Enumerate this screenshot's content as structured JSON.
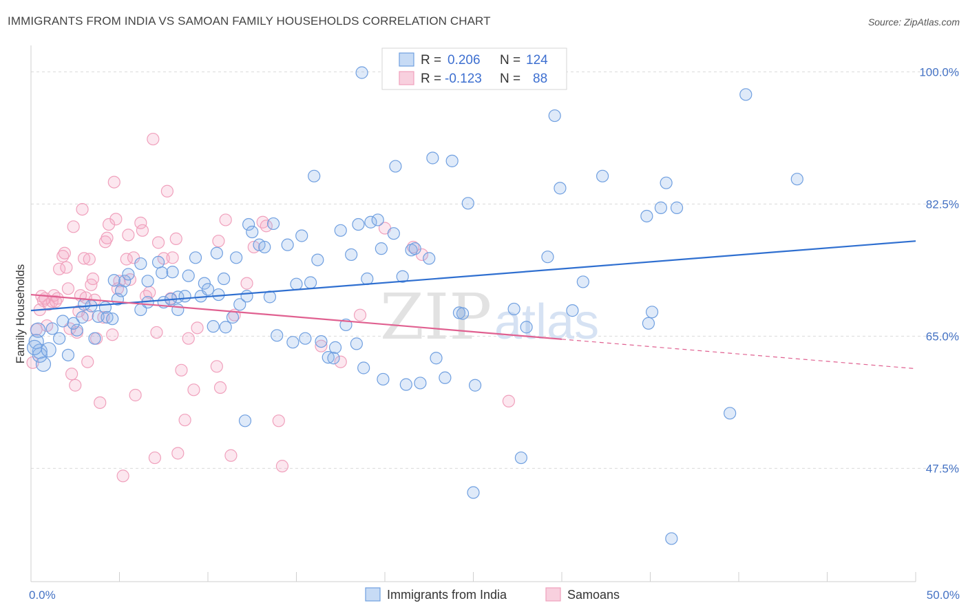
{
  "title": "IMMIGRANTS FROM INDIA VS SAMOAN FAMILY HOUSEHOLDS CORRELATION CHART",
  "source": "Source: ZipAtlas.com",
  "watermark": {
    "zip": "ZIP",
    "atlas": "atlas"
  },
  "legend": {
    "rows": [
      {
        "r_label": "R =",
        "r_value": "0.206",
        "n_label": "N =",
        "n_value": "124"
      },
      {
        "r_label": "R =",
        "r_value": "-0.123",
        "n_label": "N =",
        "n_value": "88"
      }
    ]
  },
  "bottom_legend": {
    "india": "Immigrants from India",
    "samoans": "Samoans"
  },
  "chart_data": {
    "type": "scatter",
    "xlabel": "",
    "ylabel": "Family Households",
    "xlim": [
      0,
      50
    ],
    "ylim": [
      32.5,
      103.5
    ],
    "x_tick_labels": [
      {
        "value": 0,
        "label": "0.0%"
      },
      {
        "value": 50,
        "label": "50.0%"
      }
    ],
    "y_tick_labels": [
      {
        "value": 100,
        "label": "100.0%"
      },
      {
        "value": 82.5,
        "label": "82.5%"
      },
      {
        "value": 65,
        "label": "65.0%"
      },
      {
        "value": 47.5,
        "label": "47.5%"
      }
    ],
    "grid": "horizontal dashed",
    "legend_position": "top-center",
    "colors": {
      "india": "#6f9fe0",
      "india_line": "#2f6fd0",
      "samoans": "#f0a0bc",
      "samoans_line": "#e06090"
    },
    "series": [
      {
        "name": "Immigrants from India",
        "r": 0.206,
        "n": 124,
        "trend": {
          "x": [
            0,
            50
          ],
          "y": [
            68.4,
            77.6
          ]
        },
        "points": [
          [
            0.3,
            64.3
          ],
          [
            0.5,
            63.0
          ],
          [
            0.7,
            61.3
          ],
          [
            0.5,
            62.5
          ],
          [
            1.2,
            66.0
          ],
          [
            1.6,
            64.7
          ],
          [
            2.1,
            62.5
          ],
          [
            1.8,
            67.0
          ],
          [
            2.6,
            65.8
          ],
          [
            2.9,
            67.5
          ],
          [
            3.4,
            69.0
          ],
          [
            3.8,
            67.6
          ],
          [
            3.6,
            64.7
          ],
          [
            4.2,
            68.8
          ],
          [
            4.3,
            67.5
          ],
          [
            4.6,
            67.3
          ],
          [
            4.7,
            72.4
          ],
          [
            4.9,
            69.9
          ],
          [
            5.3,
            72.3
          ],
          [
            5.1,
            71.0
          ],
          [
            5.5,
            73.2
          ],
          [
            6.2,
            74.6
          ],
          [
            6.2,
            68.5
          ],
          [
            6.6,
            72.3
          ],
          [
            7.2,
            74.8
          ],
          [
            7.4,
            73.4
          ],
          [
            7.5,
            69.5
          ],
          [
            8.0,
            73.5
          ],
          [
            8.3,
            70.2
          ],
          [
            8.3,
            68.5
          ],
          [
            8.7,
            70.3
          ],
          [
            8.9,
            73.0
          ],
          [
            9.3,
            75.4
          ],
          [
            9.6,
            70.3
          ],
          [
            9.8,
            72.0
          ],
          [
            10.0,
            71.2
          ],
          [
            10.3,
            66.3
          ],
          [
            10.5,
            76.0
          ],
          [
            10.6,
            70.5
          ],
          [
            10.9,
            72.6
          ],
          [
            11.0,
            66.2
          ],
          [
            11.4,
            67.5
          ],
          [
            11.6,
            75.4
          ],
          [
            11.8,
            69.2
          ],
          [
            12.1,
            53.8
          ],
          [
            12.3,
            79.8
          ],
          [
            12.5,
            78.8
          ],
          [
            12.9,
            77.1
          ],
          [
            13.2,
            76.8
          ],
          [
            13.5,
            70.2
          ],
          [
            13.7,
            79.9
          ],
          [
            13.9,
            65.1
          ],
          [
            14.5,
            77.1
          ],
          [
            14.8,
            64.2
          ],
          [
            15.0,
            71.9
          ],
          [
            15.3,
            78.3
          ],
          [
            15.5,
            64.7
          ],
          [
            15.8,
            72.1
          ],
          [
            16.0,
            86.2
          ],
          [
            16.2,
            75.1
          ],
          [
            16.4,
            64.3
          ],
          [
            16.8,
            62.2
          ],
          [
            17.1,
            62.1
          ],
          [
            17.2,
            63.5
          ],
          [
            17.5,
            79.0
          ],
          [
            17.8,
            66.5
          ],
          [
            18.1,
            75.8
          ],
          [
            18.4,
            64.0
          ],
          [
            18.5,
            79.8
          ],
          [
            18.8,
            60.8
          ],
          [
            19.0,
            72.6
          ],
          [
            19.2,
            80.1
          ],
          [
            19.6,
            80.4
          ],
          [
            19.8,
            76.6
          ],
          [
            19.9,
            59.3
          ],
          [
            20.5,
            78.6
          ],
          [
            20.6,
            87.5
          ],
          [
            21.0,
            72.9
          ],
          [
            21.2,
            58.6
          ],
          [
            21.5,
            76.4
          ],
          [
            21.7,
            76.6
          ],
          [
            22.0,
            58.8
          ],
          [
            22.5,
            75.3
          ],
          [
            22.7,
            88.6
          ],
          [
            22.9,
            62.1
          ],
          [
            23.4,
            59.5
          ],
          [
            23.8,
            88.2
          ],
          [
            24.2,
            68.1
          ],
          [
            24.4,
            68.0
          ],
          [
            24.7,
            82.6
          ],
          [
            25.0,
            44.3
          ],
          [
            25.1,
            58.5
          ],
          [
            27.3,
            68.6
          ],
          [
            27.7,
            48.9
          ],
          [
            28.0,
            66.2
          ],
          [
            29.2,
            75.5
          ],
          [
            29.6,
            94.2
          ],
          [
            29.9,
            84.6
          ],
          [
            30.6,
            68.4
          ],
          [
            31.2,
            72.2
          ],
          [
            32.3,
            86.2
          ],
          [
            34.8,
            80.9
          ],
          [
            35.6,
            82.0
          ],
          [
            35.9,
            85.3
          ],
          [
            36.5,
            82.0
          ],
          [
            34.9,
            66.7
          ],
          [
            35.1,
            68.2
          ],
          [
            36.2,
            38.2
          ],
          [
            39.5,
            54.8
          ],
          [
            40.4,
            97.0
          ],
          [
            43.3,
            85.8
          ],
          [
            18.7,
            99.9
          ],
          [
            0.2,
            63.5
          ],
          [
            0.4,
            65.8
          ],
          [
            1.0,
            63.2
          ],
          [
            2.4,
            66.7
          ],
          [
            3.0,
            69.2
          ],
          [
            6.6,
            69.5
          ],
          [
            7.9,
            69.9
          ],
          [
            12.2,
            70.3
          ]
        ]
      },
      {
        "name": "Samoans",
        "r": -0.123,
        "n": 88,
        "trend": {
          "x": [
            0,
            30
          ],
          "y": [
            70.5,
            64.6
          ]
        },
        "trend_dashed": {
          "x": [
            30,
            50
          ],
          "y": [
            64.6,
            60.7
          ]
        },
        "points": [
          [
            0.1,
            61.5
          ],
          [
            0.3,
            65.9
          ],
          [
            0.5,
            68.5
          ],
          [
            0.6,
            70.3
          ],
          [
            0.7,
            69.7
          ],
          [
            0.9,
            66.4
          ],
          [
            1.0,
            69.2
          ],
          [
            1.2,
            69.6
          ],
          [
            1.3,
            70.4
          ],
          [
            1.5,
            70.0
          ],
          [
            1.6,
            73.9
          ],
          [
            1.8,
            75.6
          ],
          [
            1.9,
            76.0
          ],
          [
            2.0,
            74.1
          ],
          [
            2.1,
            71.3
          ],
          [
            2.3,
            60.0
          ],
          [
            2.4,
            79.5
          ],
          [
            2.5,
            58.5
          ],
          [
            2.6,
            65.5
          ],
          [
            2.7,
            68.3
          ],
          [
            2.8,
            70.4
          ],
          [
            2.9,
            81.8
          ],
          [
            3.0,
            75.3
          ],
          [
            3.1,
            70.1
          ],
          [
            3.2,
            61.6
          ],
          [
            3.3,
            75.2
          ],
          [
            3.4,
            71.8
          ],
          [
            3.5,
            72.6
          ],
          [
            3.6,
            69.8
          ],
          [
            3.7,
            64.7
          ],
          [
            3.9,
            56.2
          ],
          [
            4.1,
            67.5
          ],
          [
            4.2,
            77.5
          ],
          [
            4.3,
            78.0
          ],
          [
            4.4,
            79.8
          ],
          [
            4.6,
            65.2
          ],
          [
            4.7,
            85.4
          ],
          [
            4.8,
            80.5
          ],
          [
            5.0,
            72.3
          ],
          [
            5.2,
            46.5
          ],
          [
            5.4,
            75.2
          ],
          [
            5.5,
            78.4
          ],
          [
            5.8,
            75.4
          ],
          [
            5.9,
            57.2
          ],
          [
            6.2,
            80.0
          ],
          [
            6.3,
            79.0
          ],
          [
            6.5,
            70.3
          ],
          [
            6.7,
            70.8
          ],
          [
            6.9,
            91.1
          ],
          [
            7.0,
            48.9
          ],
          [
            7.1,
            65.5
          ],
          [
            7.2,
            77.4
          ],
          [
            7.5,
            75.3
          ],
          [
            7.7,
            84.2
          ],
          [
            7.9,
            70.0
          ],
          [
            8.0,
            75.4
          ],
          [
            8.2,
            77.9
          ],
          [
            8.3,
            49.5
          ],
          [
            8.5,
            60.5
          ],
          [
            8.7,
            53.9
          ],
          [
            8.9,
            64.7
          ],
          [
            9.2,
            57.9
          ],
          [
            9.4,
            66.1
          ],
          [
            10.5,
            61.0
          ],
          [
            10.6,
            77.6
          ],
          [
            10.7,
            58.2
          ],
          [
            11.0,
            80.4
          ],
          [
            11.3,
            49.2
          ],
          [
            11.5,
            67.8
          ],
          [
            12.2,
            72.0
          ],
          [
            12.6,
            76.8
          ],
          [
            13.1,
            80.1
          ],
          [
            13.3,
            79.6
          ],
          [
            14.0,
            53.8
          ],
          [
            14.2,
            47.8
          ],
          [
            16.4,
            63.7
          ],
          [
            17.5,
            61.6
          ],
          [
            18.6,
            67.8
          ],
          [
            20.0,
            79.3
          ],
          [
            21.6,
            76.8
          ],
          [
            22.1,
            75.8
          ],
          [
            27.0,
            56.4
          ],
          [
            3.2,
            67.8
          ],
          [
            4.9,
            71.3
          ],
          [
            1.4,
            69.6
          ],
          [
            0.8,
            70.0
          ],
          [
            2.2,
            66.0
          ],
          [
            5.6,
            72.5
          ]
        ]
      }
    ]
  }
}
